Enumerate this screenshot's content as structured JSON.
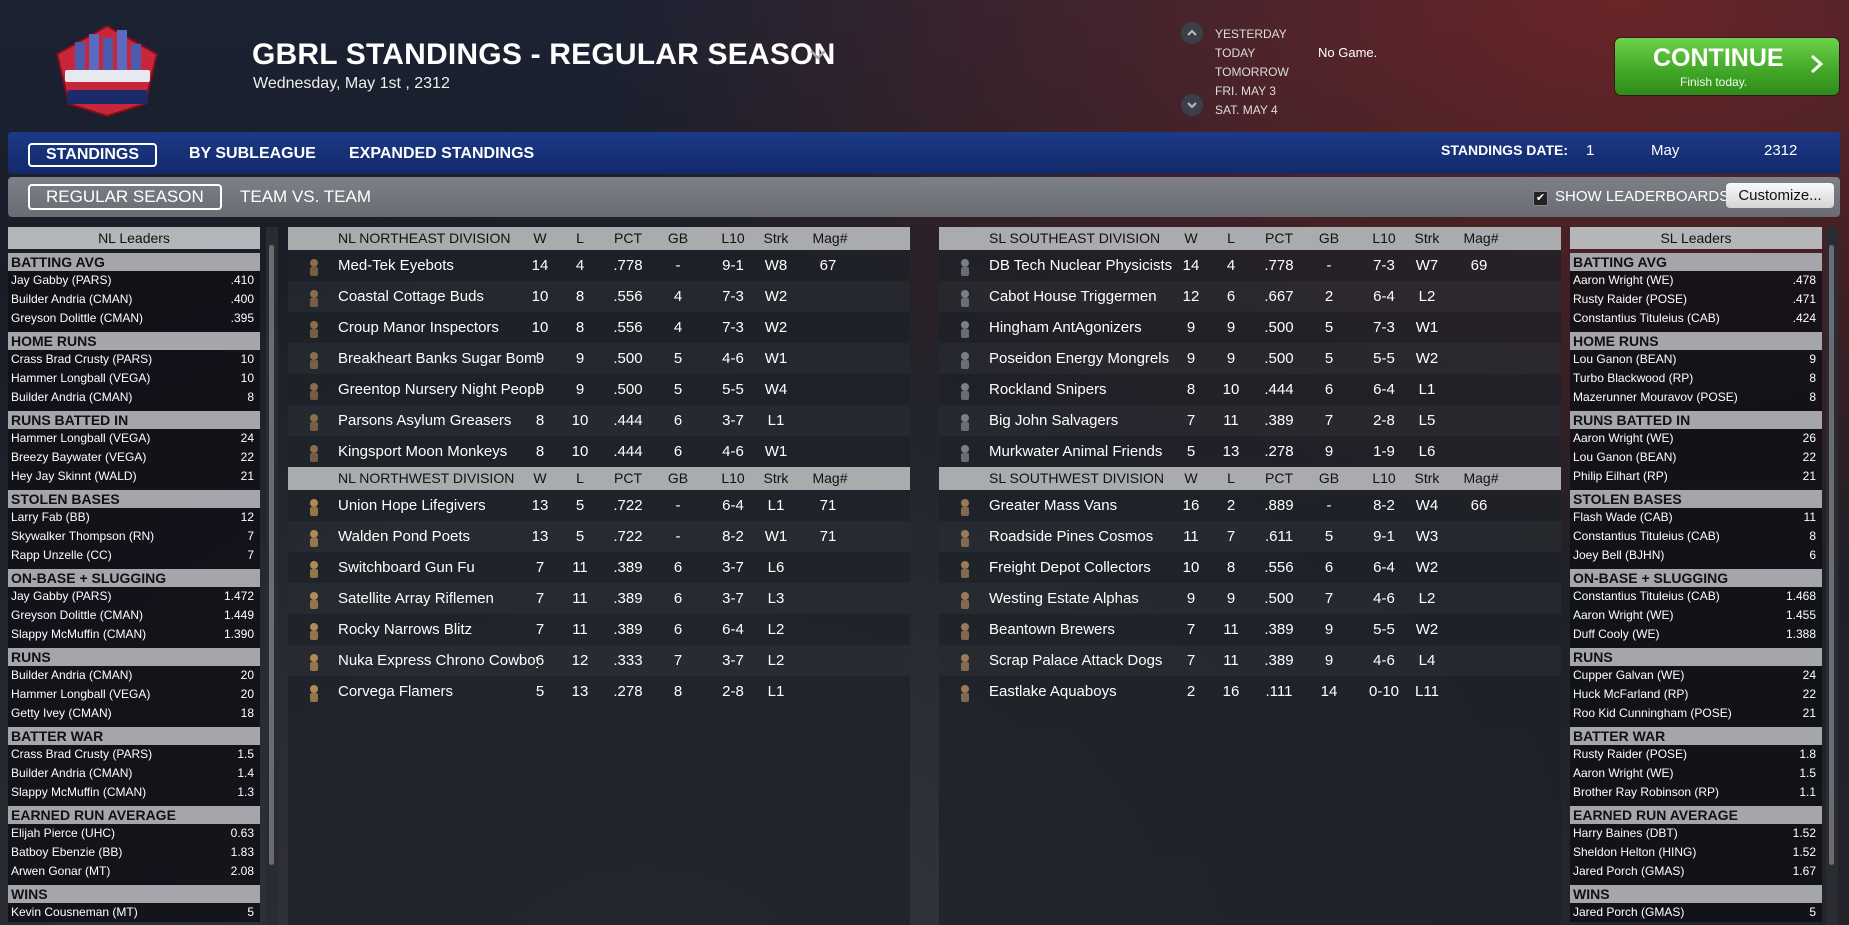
{
  "header": {
    "logo_alt": "GREATER BOSTON ROCKIE LEAGUE",
    "title": "GBRL STANDINGS - REGULAR SEASON",
    "date": "Wednesday, May 1st , 2312",
    "days": [
      "YESTERDAY",
      "TODAY",
      "TOMORROW",
      "FRI. MAY 3",
      "SAT. MAY 4"
    ],
    "today_status": "No Game.",
    "continue_label": "CONTINUE",
    "continue_sub": "Finish today."
  },
  "tabs": [
    "STANDINGS",
    "BY SUBLEAGUE",
    "EXPANDED STANDINGS"
  ],
  "standings_date": {
    "label": "STANDINGS DATE:",
    "day": "1",
    "month": "May",
    "year": "2312"
  },
  "subtabs": [
    "REGULAR SEASON",
    "TEAM VS. TEAM"
  ],
  "show_leaderboards": {
    "label": "SHOW LEADERBOARDS",
    "checked": true
  },
  "customize_label": "Customize...",
  "columns": [
    "W",
    "L",
    "PCT",
    "GB",
    "L10",
    "Strk",
    "Mag#"
  ],
  "nl_leaders": {
    "title": "NL Leaders",
    "categories": [
      {
        "name": "BATTING AVG",
        "rows": [
          [
            "Jay Gabby (PARS)",
            ".410"
          ],
          [
            "Builder Andria (CMAN)",
            ".400"
          ],
          [
            "Greyson Dolittle (CMAN)",
            ".395"
          ]
        ]
      },
      {
        "name": "HOME RUNS",
        "rows": [
          [
            "Crass Brad Crusty (PARS)",
            "10"
          ],
          [
            "Hammer Longball (VEGA)",
            "10"
          ],
          [
            "Builder Andria (CMAN)",
            "8"
          ]
        ]
      },
      {
        "name": "RUNS BATTED IN",
        "rows": [
          [
            "Hammer Longball (VEGA)",
            "24"
          ],
          [
            "Breezy Baywater (VEGA)",
            "22"
          ],
          [
            "Hey Jay Skinnt (WALD)",
            "21"
          ]
        ]
      },
      {
        "name": "STOLEN BASES",
        "rows": [
          [
            "Larry Fab (BB)",
            "12"
          ],
          [
            "Skywalker Thompson (RN)",
            "7"
          ],
          [
            "Rapp Unzelle (CC)",
            "7"
          ]
        ]
      },
      {
        "name": "ON-BASE + SLUGGING",
        "rows": [
          [
            "Jay Gabby (PARS)",
            "1.472"
          ],
          [
            "Greyson Dolittle (CMAN)",
            "1.449"
          ],
          [
            "Slappy McMuffin (CMAN)",
            "1.390"
          ]
        ]
      },
      {
        "name": "RUNS",
        "rows": [
          [
            "Builder Andria (CMAN)",
            "20"
          ],
          [
            "Hammer Longball (VEGA)",
            "20"
          ],
          [
            "Getty Ivey (CMAN)",
            "18"
          ]
        ]
      },
      {
        "name": "BATTER WAR",
        "rows": [
          [
            "Crass Brad Crusty (PARS)",
            "1.5"
          ],
          [
            "Builder Andria (CMAN)",
            "1.4"
          ],
          [
            "Slappy McMuffin (CMAN)",
            "1.3"
          ]
        ]
      },
      {
        "name": "EARNED RUN AVERAGE",
        "rows": [
          [
            "Elijah Pierce (UHC)",
            "0.63"
          ],
          [
            "Batboy Ebenzie (BB)",
            "1.83"
          ],
          [
            "Arwen Gonar (MT)",
            "2.08"
          ]
        ]
      },
      {
        "name": "WINS",
        "rows": [
          [
            "Kevin Cousneman (MT)",
            "5"
          ]
        ]
      }
    ]
  },
  "sl_leaders": {
    "title": "SL Leaders",
    "categories": [
      {
        "name": "BATTING AVG",
        "rows": [
          [
            "Aaron Wright (WE)",
            ".478"
          ],
          [
            "Rusty Raider (POSE)",
            ".471"
          ],
          [
            "Constantius Tituleius (CAB)",
            ".424"
          ]
        ]
      },
      {
        "name": "HOME RUNS",
        "rows": [
          [
            "Lou Ganon (BEAN)",
            "9"
          ],
          [
            "Turbo Blackwood (RP)",
            "8"
          ],
          [
            "Mazerunner Mouravov (POSE)",
            "8"
          ]
        ]
      },
      {
        "name": "RUNS BATTED IN",
        "rows": [
          [
            "Aaron Wright (WE)",
            "26"
          ],
          [
            "Lou Ganon (BEAN)",
            "22"
          ],
          [
            "Philip Eilhart (RP)",
            "21"
          ]
        ]
      },
      {
        "name": "STOLEN BASES",
        "rows": [
          [
            "Flash Wade (CAB)",
            "11"
          ],
          [
            "Constantius Tituleius (CAB)",
            "8"
          ],
          [
            "Joey Bell (BJHN)",
            "6"
          ]
        ]
      },
      {
        "name": "ON-BASE + SLUGGING",
        "rows": [
          [
            "Constantius Tituleius (CAB)",
            "1.468"
          ],
          [
            "Aaron Wright (WE)",
            "1.455"
          ],
          [
            "Duff Cooly (WE)",
            "1.388"
          ]
        ]
      },
      {
        "name": "RUNS",
        "rows": [
          [
            "Cupper Galvan (WE)",
            "24"
          ],
          [
            "Huck McFarland (RP)",
            "22"
          ],
          [
            "Roo Kid Cunningham (POSE)",
            "21"
          ]
        ]
      },
      {
        "name": "BATTER WAR",
        "rows": [
          [
            "Rusty Raider (POSE)",
            "1.8"
          ],
          [
            "Aaron Wright (WE)",
            "1.5"
          ],
          [
            "Brother Ray Robinson (RP)",
            "1.1"
          ]
        ]
      },
      {
        "name": "EARNED RUN AVERAGE",
        "rows": [
          [
            "Harry Baines (DBT)",
            "1.52"
          ],
          [
            "Sheldon Helton (HING)",
            "1.52"
          ],
          [
            "Jared Porch (GMAS)",
            "1.67"
          ]
        ]
      },
      {
        "name": "WINS",
        "rows": [
          [
            "Jared Porch (GMAS)",
            "5"
          ]
        ]
      }
    ]
  },
  "divisions": {
    "nl_northeast": {
      "name": "NL NORTHEAST DIVISION",
      "teams": [
        [
          "Med-Tek Eyebots",
          "14",
          "4",
          ".778",
          "-",
          "9-1",
          "W8",
          "67"
        ],
        [
          "Coastal Cottage Buds",
          "10",
          "8",
          ".556",
          "4",
          "7-3",
          "W2",
          ""
        ],
        [
          "Croup Manor Inspectors",
          "10",
          "8",
          ".556",
          "4",
          "7-3",
          "W2",
          ""
        ],
        [
          "Breakheart Banks Sugar Bombers",
          "9",
          "9",
          ".500",
          "5",
          "4-6",
          "W1",
          ""
        ],
        [
          "Greentop Nursery Night People",
          "9",
          "9",
          ".500",
          "5",
          "5-5",
          "W4",
          ""
        ],
        [
          "Parsons Asylum Greasers",
          "8",
          "10",
          ".444",
          "6",
          "3-7",
          "L1",
          ""
        ],
        [
          "Kingsport Moon Monkeys",
          "8",
          "10",
          ".444",
          "6",
          "4-6",
          "W1",
          ""
        ]
      ]
    },
    "nl_northwest": {
      "name": "NL NORTHWEST DIVISION",
      "teams": [
        [
          "Union Hope Lifegivers",
          "13",
          "5",
          ".722",
          "-",
          "6-4",
          "L1",
          "71"
        ],
        [
          "Walden Pond Poets",
          "13",
          "5",
          ".722",
          "-",
          "8-2",
          "W1",
          "71"
        ],
        [
          "Switchboard Gun Fu",
          "7",
          "11",
          ".389",
          "6",
          "3-7",
          "L6",
          ""
        ],
        [
          "Satellite Array Riflemen",
          "7",
          "11",
          ".389",
          "6",
          "3-7",
          "L3",
          ""
        ],
        [
          "Rocky Narrows Blitz",
          "7",
          "11",
          ".389",
          "6",
          "6-4",
          "L2",
          ""
        ],
        [
          "Nuka Express Chrono Cowboys",
          "6",
          "12",
          ".333",
          "7",
          "3-7",
          "L2",
          ""
        ],
        [
          "Corvega Flamers",
          "5",
          "13",
          ".278",
          "8",
          "2-8",
          "L1",
          ""
        ]
      ]
    },
    "sl_southeast": {
      "name": "SL SOUTHEAST DIVISION",
      "teams": [
        [
          "DB Tech Nuclear Physicists",
          "14",
          "4",
          ".778",
          "-",
          "7-3",
          "W7",
          "69"
        ],
        [
          "Cabot House Triggermen",
          "12",
          "6",
          ".667",
          "2",
          "6-4",
          "L2",
          ""
        ],
        [
          "Hingham AntAgonizers",
          "9",
          "9",
          ".500",
          "5",
          "7-3",
          "W1",
          ""
        ],
        [
          "Poseidon Energy Mongrels",
          "9",
          "9",
          ".500",
          "5",
          "5-5",
          "W2",
          ""
        ],
        [
          "Rockland Snipers",
          "8",
          "10",
          ".444",
          "6",
          "6-4",
          "L1",
          ""
        ],
        [
          "Big John Salvagers",
          "7",
          "11",
          ".389",
          "7",
          "2-8",
          "L5",
          ""
        ],
        [
          "Murkwater Animal Friends",
          "5",
          "13",
          ".278",
          "9",
          "1-9",
          "L6",
          ""
        ]
      ]
    },
    "sl_southwest": {
      "name": "SL SOUTHWEST DIVISION",
      "teams": [
        [
          "Greater Mass Vans",
          "16",
          "2",
          ".889",
          "-",
          "8-2",
          "W4",
          "66"
        ],
        [
          "Roadside Pines Cosmos",
          "11",
          "7",
          ".611",
          "5",
          "9-1",
          "W3",
          ""
        ],
        [
          "Freight Depot Collectors",
          "10",
          "8",
          ".556",
          "6",
          "6-4",
          "W2",
          ""
        ],
        [
          "Westing Estate Alphas",
          "9",
          "9",
          ".500",
          "7",
          "4-6",
          "L2",
          ""
        ],
        [
          "Beantown Brewers",
          "7",
          "11",
          ".389",
          "9",
          "5-5",
          "W2",
          ""
        ],
        [
          "Scrap Palace Attack Dogs",
          "7",
          "11",
          ".389",
          "9",
          "4-6",
          "L4",
          ""
        ],
        [
          "Eastlake Aquaboys",
          "2",
          "16",
          ".111",
          "14",
          "0-10",
          "L11",
          ""
        ]
      ]
    }
  },
  "colors": {
    "tabbar": "#1c3a87",
    "continue": "#43a929",
    "subbar": "#7e8087",
    "section_header": "#a9abaf"
  }
}
